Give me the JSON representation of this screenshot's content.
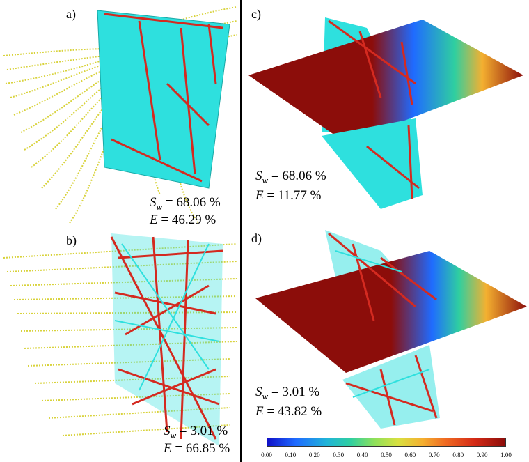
{
  "panels": {
    "a": {
      "label": "a)",
      "sw_value": "= 68.06 %",
      "e_value": "= 46.29 %"
    },
    "b": {
      "label": "b)",
      "sw_value": "= 3.01 %",
      "e_value": "= 66.85 %"
    },
    "c": {
      "label": "c)",
      "sw_value": "= 68.06 %",
      "e_value": "= 11.77 %"
    },
    "d": {
      "label": "d)",
      "sw_value": "= 3.01 %",
      "e_value": "= 43.82 %"
    }
  },
  "symbols": {
    "s": "S",
    "w": "w",
    "e": "E"
  },
  "colorbar": {
    "ticks": [
      "0.00",
      "0.10",
      "0.20",
      "0.30",
      "0.40",
      "0.50",
      "0.60",
      "0.70",
      "0.80",
      "0.90",
      "1.00"
    ],
    "colors": [
      "#1010c8",
      "#20b4d8",
      "#8ee05a",
      "#f4b030",
      "#d42a16",
      "#8c0d0a"
    ]
  },
  "colors": {
    "streamline": "#d8d23a",
    "surface": "#2ee0de",
    "fiber": "#d42a20",
    "plane": "#8c0d0a"
  }
}
